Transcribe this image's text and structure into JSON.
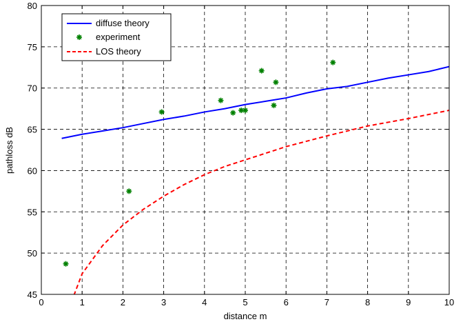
{
  "chart_data": {
    "type": "line",
    "xlabel": "distance m",
    "ylabel": "pathloss dB",
    "xlim": [
      0,
      10
    ],
    "ylim": [
      45,
      80
    ],
    "xticks": [
      0,
      1,
      2,
      3,
      4,
      5,
      6,
      7,
      8,
      9,
      10
    ],
    "yticks": [
      45,
      50,
      55,
      60,
      65,
      70,
      75,
      80
    ],
    "grid": true,
    "legend_position": "top-left",
    "series": [
      {
        "name": "diffuse theory",
        "kind": "line",
        "color": "#0000ff",
        "style": "solid",
        "x": [
          0.5,
          1,
          1.5,
          2,
          2.5,
          3,
          3.5,
          4,
          4.5,
          5,
          5.5,
          6,
          6.5,
          7,
          7.5,
          8,
          8.5,
          9,
          9.5,
          10
        ],
        "y": [
          63.9,
          64.4,
          64.8,
          65.2,
          65.7,
          66.2,
          66.6,
          67.1,
          67.5,
          68.0,
          68.4,
          68.8,
          69.4,
          69.9,
          70.2,
          70.7,
          71.2,
          71.6,
          72.0,
          72.6
        ]
      },
      {
        "name": "experiment",
        "kind": "scatter",
        "color": "#008000",
        "marker": "star",
        "x": [
          0.6,
          2.15,
          2.95,
          4.4,
          4.7,
          4.9,
          5.0,
          5.4,
          5.7,
          5.75,
          7.15
        ],
        "y": [
          48.7,
          57.5,
          67.1,
          68.5,
          67.0,
          67.3,
          67.3,
          72.1,
          67.9,
          70.7,
          73.1
        ]
      },
      {
        "name": "LOS theory",
        "kind": "line",
        "color": "#ff0000",
        "style": "dashed",
        "x": [
          0.8,
          1,
          1.5,
          2,
          2.5,
          3,
          3.5,
          4,
          4.5,
          5,
          6,
          7,
          8,
          9,
          10
        ],
        "y": [
          44.9,
          47.5,
          50.9,
          53.4,
          55.3,
          56.9,
          58.3,
          59.5,
          60.5,
          61.3,
          62.9,
          64.2,
          65.4,
          66.3,
          67.3
        ]
      }
    ]
  }
}
